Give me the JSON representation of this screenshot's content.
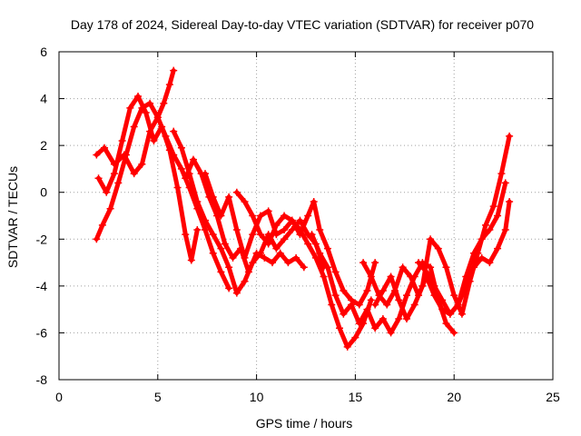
{
  "chart_data": {
    "type": "scatter",
    "title": "Day 178 of 2024, Sidereal Day-to-day VTEC variation (SDTVAR) for receiver p070",
    "xlabel": "GPS time / hours",
    "ylabel": "SDTVAR / TECUs",
    "xlim": [
      0,
      25
    ],
    "ylim": [
      -8,
      6
    ],
    "xticks": [
      0,
      5,
      10,
      15,
      20,
      25
    ],
    "yticks": [
      -8,
      -6,
      -4,
      -2,
      0,
      2,
      4,
      6
    ],
    "xtick_labels": [
      "0",
      "5",
      "10",
      "15",
      "20",
      "25"
    ],
    "ytick_labels": [
      "-8",
      "-6",
      "-4",
      "-2",
      "0",
      "2",
      "4",
      "6"
    ],
    "grid": true,
    "legend": "none",
    "marker": "+",
    "color": "#ff0000",
    "series": [
      {
        "name": "satellite-track-1",
        "x": [
          1.9,
          2.2,
          2.6,
          3.0,
          3.4,
          3.8,
          4.2,
          4.6,
          5.0,
          5.4,
          5.8,
          6.2,
          6.6,
          7.0,
          7.4,
          7.8,
          8.2,
          8.6
        ],
        "y": [
          -2.0,
          -1.4,
          -0.7,
          0.4,
          1.6,
          2.8,
          3.6,
          3.8,
          3.2,
          2.4,
          1.6,
          1.0,
          0.2,
          -0.7,
          -1.6,
          -2.6,
          -3.4,
          -4.1
        ]
      },
      {
        "name": "satellite-track-2",
        "x": [
          1.9,
          2.3,
          2.8,
          3.3,
          3.8,
          4.2,
          4.6,
          5.0,
          5.3,
          5.6,
          5.8
        ],
        "y": [
          1.6,
          1.9,
          1.2,
          1.6,
          0.8,
          1.2,
          2.6,
          3.2,
          3.8,
          4.6,
          5.2
        ]
      },
      {
        "name": "satellite-track-3",
        "x": [
          2.0,
          2.4,
          2.8,
          3.2,
          3.6,
          4.0,
          4.4,
          4.8,
          5.2,
          5.6,
          6.0,
          6.4,
          6.7,
          7.0
        ],
        "y": [
          0.6,
          0.0,
          0.8,
          2.2,
          3.6,
          4.1,
          3.4,
          2.2,
          2.8,
          1.8,
          0.2,
          -1.8,
          -2.9,
          -1.6
        ]
      },
      {
        "name": "satellite-track-4",
        "x": [
          5.8,
          6.2,
          6.6,
          7.0,
          7.4,
          7.8,
          8.2,
          8.6,
          9.0,
          9.4,
          9.8,
          10.2,
          10.6,
          11.0,
          11.4,
          11.8,
          12.2,
          12.6,
          13.0,
          13.4
        ],
        "y": [
          2.6,
          1.9,
          0.8,
          -0.4,
          -1.2,
          -1.8,
          -2.4,
          -3.2,
          -4.3,
          -3.8,
          -3.0,
          -2.6,
          -1.8,
          -2.4,
          -2.0,
          -1.6,
          -1.2,
          -1.8,
          -2.2,
          -3.2
        ]
      },
      {
        "name": "satellite-track-5",
        "x": [
          6.4,
          6.8,
          7.2,
          7.6,
          8.0,
          8.4,
          8.8,
          9.2,
          9.6,
          10.0,
          10.4,
          10.8,
          11.2,
          11.6,
          12.0,
          12.4
        ],
        "y": [
          0.6,
          1.4,
          0.8,
          -0.2,
          -1.0,
          -2.2,
          -2.8,
          -2.4,
          -3.4,
          -2.6,
          -2.8,
          -3.0,
          -2.6,
          -3.0,
          -2.8,
          -3.2
        ]
      },
      {
        "name": "satellite-track-6",
        "x": [
          7.4,
          7.8,
          8.2,
          8.6,
          9.0,
          9.4,
          9.8,
          10.2,
          10.6,
          11.0,
          11.4,
          11.8,
          12.2,
          12.6,
          12.9,
          13.2,
          13.6,
          14.0,
          14.4,
          14.8,
          15.2,
          15.6,
          16.0
        ],
        "y": [
          0.8,
          -0.2,
          -1.0,
          -0.2,
          -1.6,
          -2.8,
          -1.8,
          -1.0,
          -0.8,
          -1.8,
          -1.6,
          -1.2,
          -1.8,
          -1.0,
          -0.4,
          -1.6,
          -2.4,
          -3.4,
          -4.2,
          -4.6,
          -4.8,
          -4.2,
          -3.0
        ]
      },
      {
        "name": "satellite-track-7",
        "x": [
          9.0,
          9.4,
          9.8,
          10.2,
          10.6,
          11.0,
          11.4,
          11.8,
          12.2,
          12.6,
          13.0,
          13.4,
          13.8,
          14.2,
          14.6,
          15.0,
          15.4,
          15.8
        ],
        "y": [
          0.0,
          -0.4,
          -1.0,
          -1.8,
          -2.2,
          -1.4,
          -1.0,
          -1.2,
          -1.6,
          -2.2,
          -2.8,
          -3.6,
          -4.8,
          -5.8,
          -6.6,
          -6.2,
          -5.6,
          -4.6
        ]
      },
      {
        "name": "satellite-track-8",
        "x": [
          12.8,
          13.2,
          13.6,
          14.0,
          14.4,
          14.8,
          15.2,
          15.6,
          16.0,
          16.4,
          16.8,
          17.2,
          17.6,
          18.0,
          18.4,
          18.8,
          19.2,
          19.6,
          20.0
        ],
        "y": [
          -1.8,
          -2.6,
          -3.2,
          -4.4,
          -5.2,
          -4.8,
          -5.6,
          -5.0,
          -5.8,
          -5.4,
          -6.0,
          -5.4,
          -4.4,
          -3.6,
          -3.0,
          -3.2,
          -4.6,
          -5.6,
          -6.0
        ]
      },
      {
        "name": "satellite-track-9",
        "x": [
          15.4,
          15.8,
          16.2,
          16.6,
          17.0,
          17.4,
          17.8,
          18.2,
          18.6,
          19.0,
          19.4,
          19.8,
          20.2,
          20.6,
          21.0,
          21.4,
          21.8,
          22.2,
          22.6
        ],
        "y": [
          -3.0,
          -3.6,
          -4.4,
          -4.8,
          -4.2,
          -3.2,
          -3.6,
          -4.4,
          -3.6,
          -4.4,
          -5.0,
          -5.2,
          -4.8,
          -3.6,
          -2.6,
          -2.0,
          -1.6,
          -1.0,
          0.4
        ]
      },
      {
        "name": "satellite-track-10",
        "x": [
          16.0,
          16.4,
          16.8,
          17.2,
          17.6,
          18.0,
          18.4,
          18.8,
          19.2,
          19.6,
          20.0,
          20.4,
          20.8,
          21.2,
          21.6,
          22.0,
          22.4,
          22.8
        ],
        "y": [
          -4.8,
          -4.2,
          -3.6,
          -4.6,
          -5.4,
          -4.8,
          -4.0,
          -2.0,
          -2.4,
          -3.2,
          -4.4,
          -5.2,
          -3.8,
          -2.6,
          -1.4,
          -0.6,
          0.8,
          2.4
        ]
      },
      {
        "name": "satellite-track-11",
        "x": [
          18.2,
          18.6,
          19.0,
          19.4,
          19.8,
          20.2,
          20.6,
          21.0,
          21.4,
          21.8,
          22.2,
          22.6,
          22.8
        ],
        "y": [
          -3.0,
          -3.4,
          -4.0,
          -4.6,
          -5.2,
          -4.8,
          -4.0,
          -3.2,
          -2.8,
          -3.0,
          -2.4,
          -1.6,
          -0.4
        ]
      }
    ]
  }
}
